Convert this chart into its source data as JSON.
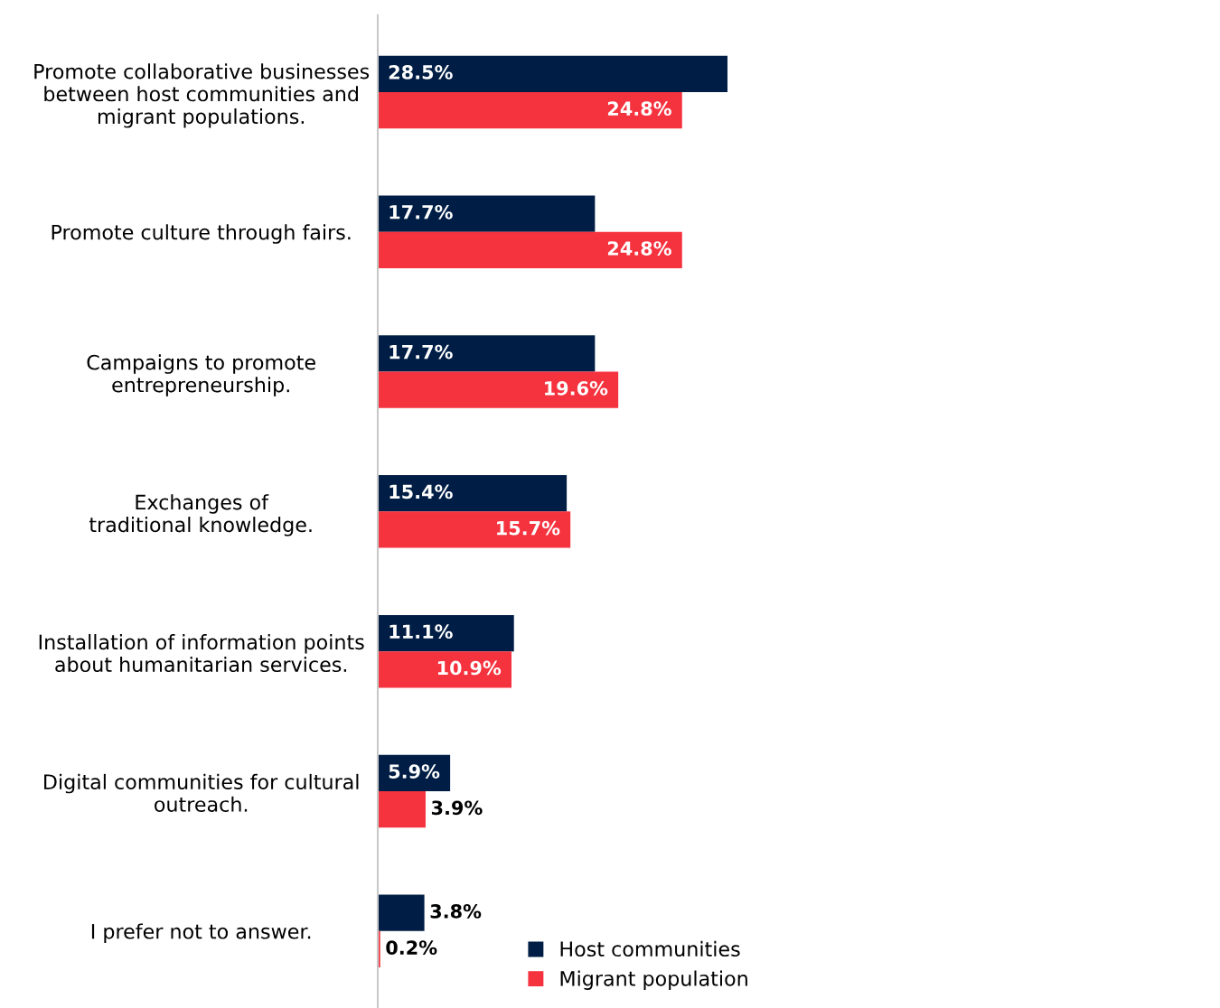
{
  "chart_data": {
    "type": "bar",
    "orientation": "horizontal",
    "categories": [
      "Promote collaborative businesses\nbetween host communities and\nmigrant populations.",
      "Promote culture through fairs.",
      "Campaigns to promote\nentrepreneurship.",
      "Exchanges of\ntraditional knowledge.",
      "Installation of information points\nabout humanitarian services.",
      "Digital communities for cultural\noutreach.",
      "I prefer not to answer."
    ],
    "series": [
      {
        "name": "Host communities",
        "color": "#001e45",
        "values": [
          28.5,
          17.7,
          17.7,
          15.4,
          11.1,
          5.9,
          3.8
        ],
        "value_labels": [
          "28.5%",
          "17.7%",
          "17.7%",
          "15.4%",
          "11.1%",
          "5.9%",
          "3.8%"
        ]
      },
      {
        "name": "Migrant population",
        "color": "#f5333f",
        "values": [
          24.8,
          24.8,
          19.6,
          15.7,
          10.9,
          3.9,
          0.2
        ],
        "value_labels": [
          "24.8%",
          "24.8%",
          "19.6%",
          "15.7%",
          "10.9%",
          "3.9%",
          "0.2%"
        ]
      }
    ],
    "legend": "bottom",
    "grid": false
  }
}
